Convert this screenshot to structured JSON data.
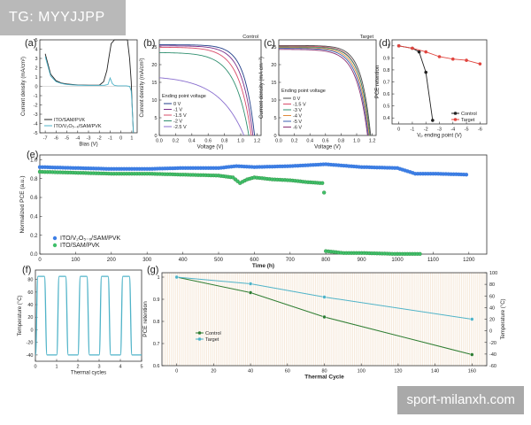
{
  "watermarks": {
    "top_left": "TG: MYYJJPP",
    "bottom_right": "sport-milanxh.com"
  },
  "colors": {
    "black": "#222222",
    "green": "#2e7d32",
    "blue": "#2f6fd0",
    "blue_fill": "#3d7fe6",
    "green_fill": "#3fbf6a",
    "teal": "#4fb3c8",
    "red": "#e0443e",
    "cycle_band": "#f6e8d8",
    "b_series": [
      "#1f3c88",
      "#7a2f8a",
      "#d94c6a",
      "#2f8f6f",
      "#8a6fcf"
    ],
    "c_series": [
      "#4a4a4a",
      "#d94c6a",
      "#2f8f6f",
      "#e08a3c",
      "#3a5fb0",
      "#8a2f6f"
    ]
  },
  "chart_data": [
    {
      "panel": "(a)",
      "type": "line",
      "xlabel": "Bias (V)",
      "ylabel": "Current density (mA/cm²)",
      "xlim": [
        -7.5,
        1.5
      ],
      "ylim": [
        -5,
        5
      ],
      "xticks": [
        -7,
        -6,
        -5,
        -4,
        -3,
        -2,
        -1,
        0,
        1
      ],
      "yticks": [
        -5,
        -4,
        -3,
        -2,
        -1,
        0,
        1,
        2,
        3,
        4,
        5
      ],
      "series": [
        {
          "name": "ITO/SAM/PVK",
          "color": "black",
          "x": [
            -7.0,
            -6.5,
            -6.0,
            -5.5,
            -5.0,
            -4.0,
            -3.0,
            -2.0,
            -1.6,
            -1.3,
            -1.1,
            -0.9,
            -0.6,
            -0.3,
            0.0,
            0.3,
            0.6,
            0.8,
            0.95,
            1.05,
            1.15
          ],
          "y": [
            3.5,
            1.3,
            0.6,
            0.35,
            0.25,
            0.15,
            0.12,
            0.12,
            0.5,
            1.7,
            3.2,
            4.6,
            5.0,
            5.0,
            5.0,
            5.0,
            5.0,
            3.0,
            0.5,
            -2.5,
            -5.0
          ]
        },
        {
          "name": "ITO/V₂O₅₋ₓ/SAM/PVK",
          "color": "teal",
          "x": [
            -7.0,
            -6.5,
            -6.0,
            -5.5,
            -5.0,
            -4.0,
            -3.0,
            -2.0,
            -1.5,
            -1.2,
            -1.0,
            -0.8,
            -0.6,
            -0.3,
            0.0,
            0.5,
            0.8,
            0.95,
            1.05,
            1.15
          ],
          "y": [
            3.2,
            1.1,
            0.5,
            0.3,
            0.2,
            0.12,
            0.1,
            0.1,
            0.12,
            0.2,
            0.9,
            0.3,
            0.1,
            0.05,
            0.05,
            0.05,
            0.0,
            -0.5,
            -2.5,
            -5.0
          ]
        }
      ]
    },
    {
      "panel": "(b)",
      "type": "line",
      "corner_label": "Control",
      "legend_title": "Ending point voltage",
      "xlabel": "Voltage (V)",
      "ylabel": "Current density (mA/cm²)",
      "xlim": [
        0,
        1.25
      ],
      "ylim": [
        0,
        27
      ],
      "xticks": [
        0,
        0.2,
        0.4,
        0.6,
        0.8,
        1.0,
        1.2
      ],
      "xtick_labels": [
        "0.0",
        "0.2",
        "0.4",
        "0.6",
        "0.8",
        "1.0",
        "1.2"
      ],
      "yticks": [
        0,
        5,
        10,
        15,
        20,
        25
      ],
      "series": [
        {
          "name": "0 V",
          "jsc": 25.6,
          "voc": 1.17,
          "n": 1.2
        },
        {
          "name": "-1 V",
          "jsc": 25.3,
          "voc": 1.15,
          "n": 1.3
        },
        {
          "name": "-1.5 V",
          "jsc": 24.9,
          "voc": 1.13,
          "n": 1.5
        },
        {
          "name": "-2 V",
          "jsc": 23.4,
          "voc": 1.1,
          "n": 1.7
        },
        {
          "name": "-2.5 V",
          "jsc": 16.3,
          "voc": 1.04,
          "n": 3.0
        }
      ]
    },
    {
      "panel": "(c)",
      "type": "line",
      "corner_label": "Target",
      "legend_title": "Ending point voltage",
      "xlabel": "Voltage (V)",
      "ylabel": "Current density (mA cm⁻²)",
      "xlim": [
        0,
        1.25
      ],
      "ylim": [
        0,
        27
      ],
      "xticks": [
        0,
        0.2,
        0.4,
        0.6,
        0.8,
        1.0,
        1.2
      ],
      "xtick_labels": [
        "0.0",
        "0.2",
        "0.4",
        "0.6",
        "0.8",
        "1.0",
        "1.2"
      ],
      "yticks": [
        0,
        5,
        10,
        15,
        20,
        25
      ],
      "series": [
        {
          "name": "0 V",
          "jsc": 25.4,
          "voc": 1.18,
          "n": 1.15
        },
        {
          "name": "-1.5 V",
          "jsc": 25.2,
          "voc": 1.17,
          "n": 1.2
        },
        {
          "name": "-3 V",
          "jsc": 25.0,
          "voc": 1.17,
          "n": 1.2
        },
        {
          "name": "-4 V",
          "jsc": 24.8,
          "voc": 1.16,
          "n": 1.25
        },
        {
          "name": "-5 V",
          "jsc": 24.6,
          "voc": 1.15,
          "n": 1.3
        },
        {
          "name": "-6 V",
          "jsc": 24.3,
          "voc": 1.14,
          "n": 1.35
        }
      ]
    },
    {
      "panel": "(d)",
      "type": "line",
      "xlabel": "Vₚ ending point (V)",
      "ylabel": "PCE retention",
      "xlim": [
        0.5,
        -6.5
      ],
      "ylim": [
        0.35,
        1.05
      ],
      "xticks": [
        0,
        -1,
        -2,
        -3,
        -4,
        -5,
        -6
      ],
      "yticks": [
        0.4,
        0.5,
        0.6,
        0.7,
        0.8,
        0.9,
        1.0
      ],
      "series": [
        {
          "name": "Control",
          "color": "black",
          "x": [
            0,
            -1,
            -1.5,
            -2,
            -2.5
          ],
          "y": [
            1.0,
            0.98,
            0.95,
            0.78,
            0.38
          ]
        },
        {
          "name": "Target",
          "color": "red",
          "x": [
            0,
            -1,
            -2,
            -3,
            -4,
            -5,
            -6
          ],
          "y": [
            1.0,
            0.98,
            0.95,
            0.91,
            0.89,
            0.88,
            0.85
          ]
        }
      ]
    },
    {
      "panel": "(e)",
      "type": "scatter",
      "xlabel": "Time (h)",
      "ylabel": "Normalized PCE (a.u.)",
      "xlim": [
        0,
        1250
      ],
      "ylim": [
        0,
        1.05
      ],
      "xticks": [
        0,
        100,
        200,
        300,
        400,
        500,
        600,
        700,
        800,
        900,
        1000,
        1100,
        1200
      ],
      "yticks": [
        0,
        0.2,
        0.4,
        0.6,
        0.8,
        1.0
      ],
      "ytick_labels": [
        "0.0",
        "0.2",
        "0.4",
        "0.6",
        "0.8",
        "1.0"
      ],
      "series": [
        {
          "name": "ITO/V₂O₅₋ₓ/SAM/PVK",
          "color": "blue",
          "x": [
            0,
            100,
            200,
            300,
            400,
            500,
            550,
            600,
            700,
            800,
            900,
            1000,
            1050,
            1100,
            1200
          ],
          "y": [
            0.93,
            0.92,
            0.91,
            0.91,
            0.92,
            0.92,
            0.94,
            0.93,
            0.94,
            0.96,
            0.93,
            0.92,
            0.86,
            0.86,
            0.85
          ]
        },
        {
          "name": "ITO/SAM/PVK",
          "color": "green",
          "x": [
            0,
            100,
            200,
            300,
            400,
            500,
            540,
            560,
            580,
            600,
            650,
            700,
            750,
            790,
            795,
            800,
            850,
            900,
            1000,
            1070
          ],
          "y": [
            0.88,
            0.87,
            0.86,
            0.86,
            0.85,
            0.84,
            0.82,
            0.76,
            0.8,
            0.82,
            0.8,
            0.79,
            0.77,
            0.76,
            0.66,
            0.04,
            0.02,
            0.02,
            0.01,
            0.01
          ]
        }
      ]
    },
    {
      "panel": "(f)",
      "type": "line",
      "xlabel": "Thermal cycles",
      "ylabel": "Temperature (°C)",
      "xlim": [
        0,
        5
      ],
      "ylim": [
        -50,
        95
      ],
      "xticks": [
        0,
        1,
        2,
        3,
        4,
        5
      ],
      "yticks": [
        -40,
        -20,
        0,
        20,
        40,
        60,
        80
      ],
      "cycles": 5,
      "t_max": 85,
      "t_min": -40,
      "color": "teal"
    },
    {
      "panel": "(g)",
      "type": "line",
      "xlabel": "Thermal Cycle",
      "ylabel": "PCE retention",
      "y2label": "Temperature (°C)",
      "xlim": [
        -8,
        168
      ],
      "ylim": [
        0.6,
        1.02
      ],
      "y2lim": [
        -60,
        100
      ],
      "xticks": [
        0,
        20,
        40,
        60,
        80,
        100,
        120,
        140,
        160
      ],
      "yticks": [
        0.6,
        0.7,
        0.8,
        0.9,
        1.0
      ],
      "y2ticks": [
        -60,
        -40,
        -20,
        0,
        20,
        40,
        60,
        80,
        100
      ],
      "series": [
        {
          "name": "Control",
          "color": "green",
          "x": [
            0,
            40,
            80,
            160
          ],
          "y": [
            1.0,
            0.93,
            0.82,
            0.65
          ]
        },
        {
          "name": "Target",
          "color": "teal",
          "x": [
            0,
            40,
            80,
            160
          ],
          "y": [
            1.0,
            0.97,
            0.91,
            0.81
          ]
        }
      ]
    }
  ]
}
